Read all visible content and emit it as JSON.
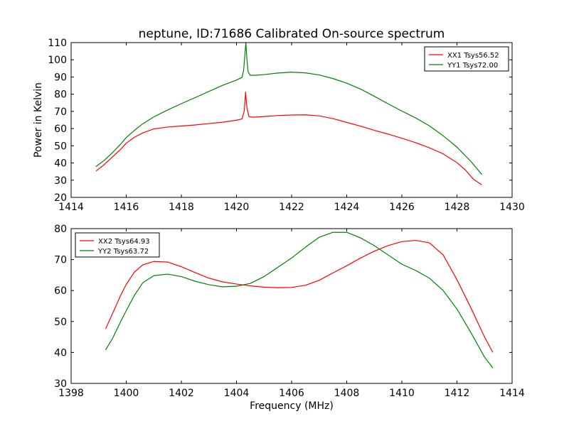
{
  "figure": {
    "title": "neptune, ID:71686 Calibrated On-source spectrum",
    "xlabel": "Frequency (MHz)",
    "ylabel": "Power in Kelvin"
  },
  "colors": {
    "red": "#ff0000",
    "green": "#008000"
  },
  "chart_data": [
    {
      "type": "line",
      "title": "neptune, ID:71686 Calibrated On-source spectrum",
      "xlabel": "",
      "ylabel": "Power in Kelvin",
      "xlim": [
        1414,
        1430
      ],
      "ylim": [
        20,
        110
      ],
      "xticks": [
        1414,
        1416,
        1418,
        1420,
        1422,
        1424,
        1426,
        1428,
        1430
      ],
      "yticks": [
        20,
        30,
        40,
        50,
        60,
        70,
        80,
        90,
        100,
        110
      ],
      "grid": false,
      "legend_position": "top-right",
      "series": [
        {
          "name": "XX1 Tsys56.52",
          "color": "#ff0000",
          "x": [
            1414.9,
            1415.2,
            1415.5,
            1415.8,
            1416.0,
            1416.3,
            1416.6,
            1417.0,
            1417.5,
            1418.0,
            1418.5,
            1419.0,
            1419.5,
            1420.0,
            1420.2,
            1420.28,
            1420.33,
            1420.38,
            1420.45,
            1420.6,
            1421.0,
            1421.5,
            1422.0,
            1422.5,
            1423.0,
            1423.5,
            1424.0,
            1424.5,
            1425.0,
            1425.5,
            1426.0,
            1426.5,
            1427.0,
            1427.5,
            1428.0,
            1428.3,
            1428.6,
            1428.9
          ],
          "y": [
            35.3,
            39.0,
            43.5,
            48.0,
            51.5,
            55.0,
            57.5,
            59.8,
            60.9,
            61.5,
            62.1,
            62.9,
            63.7,
            64.9,
            65.6,
            70.0,
            81.2,
            72.0,
            67.0,
            66.6,
            67.0,
            67.6,
            67.9,
            68.0,
            67.4,
            65.8,
            63.6,
            61.4,
            59.0,
            56.8,
            54.4,
            51.8,
            48.8,
            45.3,
            40.2,
            36.0,
            30.5,
            27.3
          ]
        },
        {
          "name": "YY1 Tsys72.00",
          "color": "#008000",
          "x": [
            1414.9,
            1415.2,
            1415.5,
            1415.8,
            1416.0,
            1416.3,
            1416.6,
            1417.0,
            1417.5,
            1418.0,
            1418.5,
            1419.0,
            1419.5,
            1420.0,
            1420.2,
            1420.26,
            1420.3,
            1420.34,
            1420.38,
            1420.42,
            1420.5,
            1420.7,
            1421.0,
            1421.5,
            1422.0,
            1422.5,
            1423.0,
            1423.5,
            1424.0,
            1424.5,
            1425.0,
            1425.5,
            1426.0,
            1426.5,
            1427.0,
            1427.5,
            1428.0,
            1428.5,
            1428.9
          ],
          "y": [
            37.9,
            41.5,
            46.0,
            51.0,
            54.8,
            59.0,
            62.8,
            66.8,
            70.8,
            74.5,
            78.0,
            81.6,
            85.2,
            88.2,
            89.8,
            94.0,
            102.0,
            110.0,
            100.0,
            93.0,
            91.0,
            91.0,
            91.4,
            92.3,
            92.8,
            92.4,
            91.2,
            89.1,
            86.4,
            83.0,
            78.8,
            74.4,
            70.2,
            66.2,
            61.6,
            55.8,
            49.2,
            41.0,
            33.3
          ]
        }
      ]
    },
    {
      "type": "line",
      "title": "",
      "xlabel": "Frequency (MHz)",
      "ylabel": "",
      "xlim": [
        1398,
        1414
      ],
      "ylim": [
        30,
        80
      ],
      "xticks": [
        1398,
        1400,
        1402,
        1404,
        1406,
        1408,
        1410,
        1412,
        1414
      ],
      "yticks": [
        30,
        40,
        50,
        60,
        70,
        80
      ],
      "grid": false,
      "legend_position": "top-left",
      "series": [
        {
          "name": "XX2 Tsys64.93",
          "color": "#ff0000",
          "x": [
            1399.25,
            1399.5,
            1399.8,
            1400.0,
            1400.3,
            1400.6,
            1401.0,
            1401.5,
            1402.0,
            1402.5,
            1403.0,
            1403.5,
            1404.0,
            1404.5,
            1405.0,
            1405.5,
            1406.0,
            1406.5,
            1407.0,
            1407.5,
            1408.0,
            1408.5,
            1409.0,
            1409.5,
            1410.0,
            1410.5,
            1411.0,
            1411.5,
            1412.0,
            1412.5,
            1413.0,
            1413.3
          ],
          "y": [
            47.6,
            52.5,
            58.5,
            62.0,
            66.0,
            68.3,
            69.4,
            69.2,
            67.7,
            65.8,
            64.0,
            62.8,
            62.1,
            61.5,
            61.1,
            60.9,
            61.0,
            61.7,
            63.3,
            65.7,
            68.0,
            70.5,
            72.7,
            74.5,
            75.8,
            76.2,
            75.4,
            71.5,
            63.5,
            54.5,
            45.0,
            40.0
          ]
        },
        {
          "name": "YY2 Tsys63.72",
          "color": "#008000",
          "x": [
            1399.25,
            1399.5,
            1399.8,
            1400.0,
            1400.3,
            1400.6,
            1401.0,
            1401.5,
            1402.0,
            1402.5,
            1403.0,
            1403.5,
            1404.0,
            1404.5,
            1405.0,
            1405.5,
            1406.0,
            1406.5,
            1407.0,
            1407.5,
            1408.0,
            1408.5,
            1409.0,
            1409.5,
            1410.0,
            1410.5,
            1411.0,
            1411.5,
            1412.0,
            1412.5,
            1413.0,
            1413.3
          ],
          "y": [
            40.8,
            44.5,
            50.0,
            53.5,
            58.5,
            62.5,
            64.8,
            65.3,
            64.5,
            63.0,
            61.9,
            61.2,
            61.4,
            62.3,
            64.5,
            67.5,
            70.5,
            74.0,
            77.2,
            78.8,
            78.8,
            77.0,
            74.5,
            71.5,
            68.5,
            66.5,
            64.0,
            60.0,
            54.0,
            46.5,
            38.5,
            35.0
          ]
        }
      ]
    }
  ]
}
